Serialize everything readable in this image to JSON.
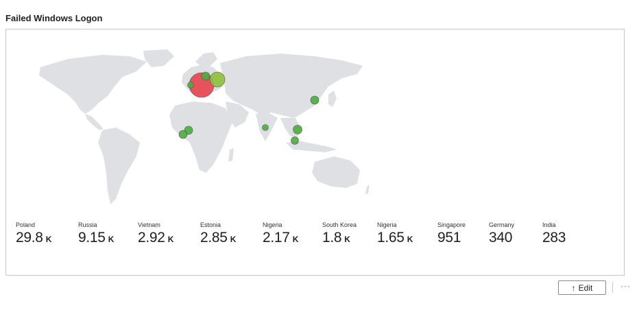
{
  "widget": {
    "title": "Failed Windows Logon"
  },
  "stats": [
    {
      "country": "Poland",
      "value": "29.8",
      "unit": "K"
    },
    {
      "country": "Russia",
      "value": "9.15",
      "unit": "K"
    },
    {
      "country": "Vietnam",
      "value": "2.92",
      "unit": "K"
    },
    {
      "country": "Estonia",
      "value": "2.85",
      "unit": "K"
    },
    {
      "country": "Nigeria",
      "value": "2.17",
      "unit": "K"
    },
    {
      "country": "South Korea",
      "value": "1.8",
      "unit": "K"
    },
    {
      "country": "Nigeria",
      "value": "1.65",
      "unit": "K"
    },
    {
      "country": "Singapore",
      "value": "951",
      "unit": ""
    },
    {
      "country": "Germany",
      "value": "340",
      "unit": ""
    },
    {
      "country": "India",
      "value": "283",
      "unit": ""
    }
  ],
  "actions": {
    "edit_icon": "up-arrow-icon",
    "edit_label": "Edit",
    "more_label": "···"
  },
  "colors": {
    "land": "#dfe0e3",
    "high_bubble": "#e8434b",
    "medium_bubble": "#8fbf3a",
    "low_bubble": "#4aae3c"
  }
}
